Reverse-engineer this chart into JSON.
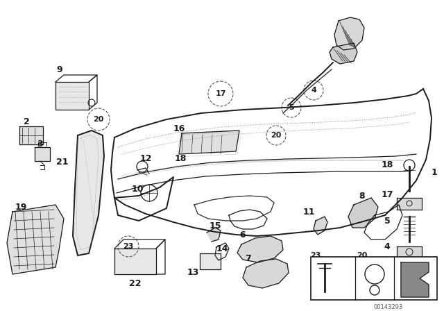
{
  "bg_color": "#ffffff",
  "fig_width": 6.4,
  "fig_height": 4.48,
  "dpi": 100,
  "watermark": "00143293"
}
